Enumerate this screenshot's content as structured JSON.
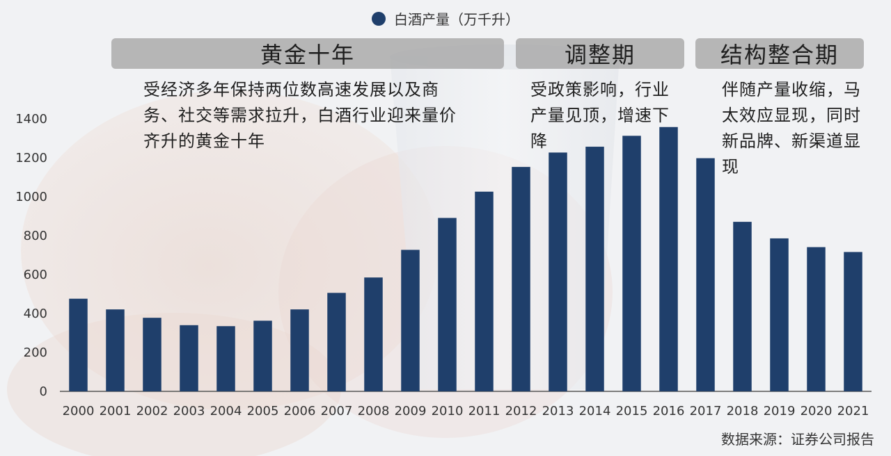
{
  "legend": {
    "label": "白酒产量（万千升）",
    "color": "#1f3f6b"
  },
  "phases": [
    {
      "title": "黄金十年",
      "description": "受经济多年保持两位数高速发展以及商务、社交等需求拉升，白酒行业迎来量价齐升的黄金十年"
    },
    {
      "title": "调整期",
      "description": "受政策影响，行业产量见顶，增速下降"
    },
    {
      "title": "结构整合期",
      "description": "伴随产量收缩，马太效应显现，同时新品牌、新渠道显现"
    }
  ],
  "source": "数据来源：证券公司报告",
  "chart_data": {
    "type": "bar",
    "categories": [
      "2000",
      "2001",
      "2002",
      "2003",
      "2004",
      "2005",
      "2006",
      "2007",
      "2008",
      "2009",
      "2010",
      "2011",
      "2012",
      "2013",
      "2014",
      "2015",
      "2016",
      "2017",
      "2018",
      "2019",
      "2020",
      "2021"
    ],
    "series": [
      {
        "name": "白酒产量（万千升）",
        "values": [
          476,
          421,
          378,
          340,
          335,
          363,
          421,
          506,
          585,
          727,
          891,
          1026,
          1153,
          1227,
          1257,
          1313,
          1358,
          1198,
          871,
          786,
          741,
          716
        ]
      }
    ],
    "ylim": [
      0,
      1400
    ],
    "yticks": [
      0,
      200,
      400,
      600,
      800,
      1000,
      1200,
      1400
    ],
    "bar_color": "#1f3f6b",
    "grid": false
  }
}
